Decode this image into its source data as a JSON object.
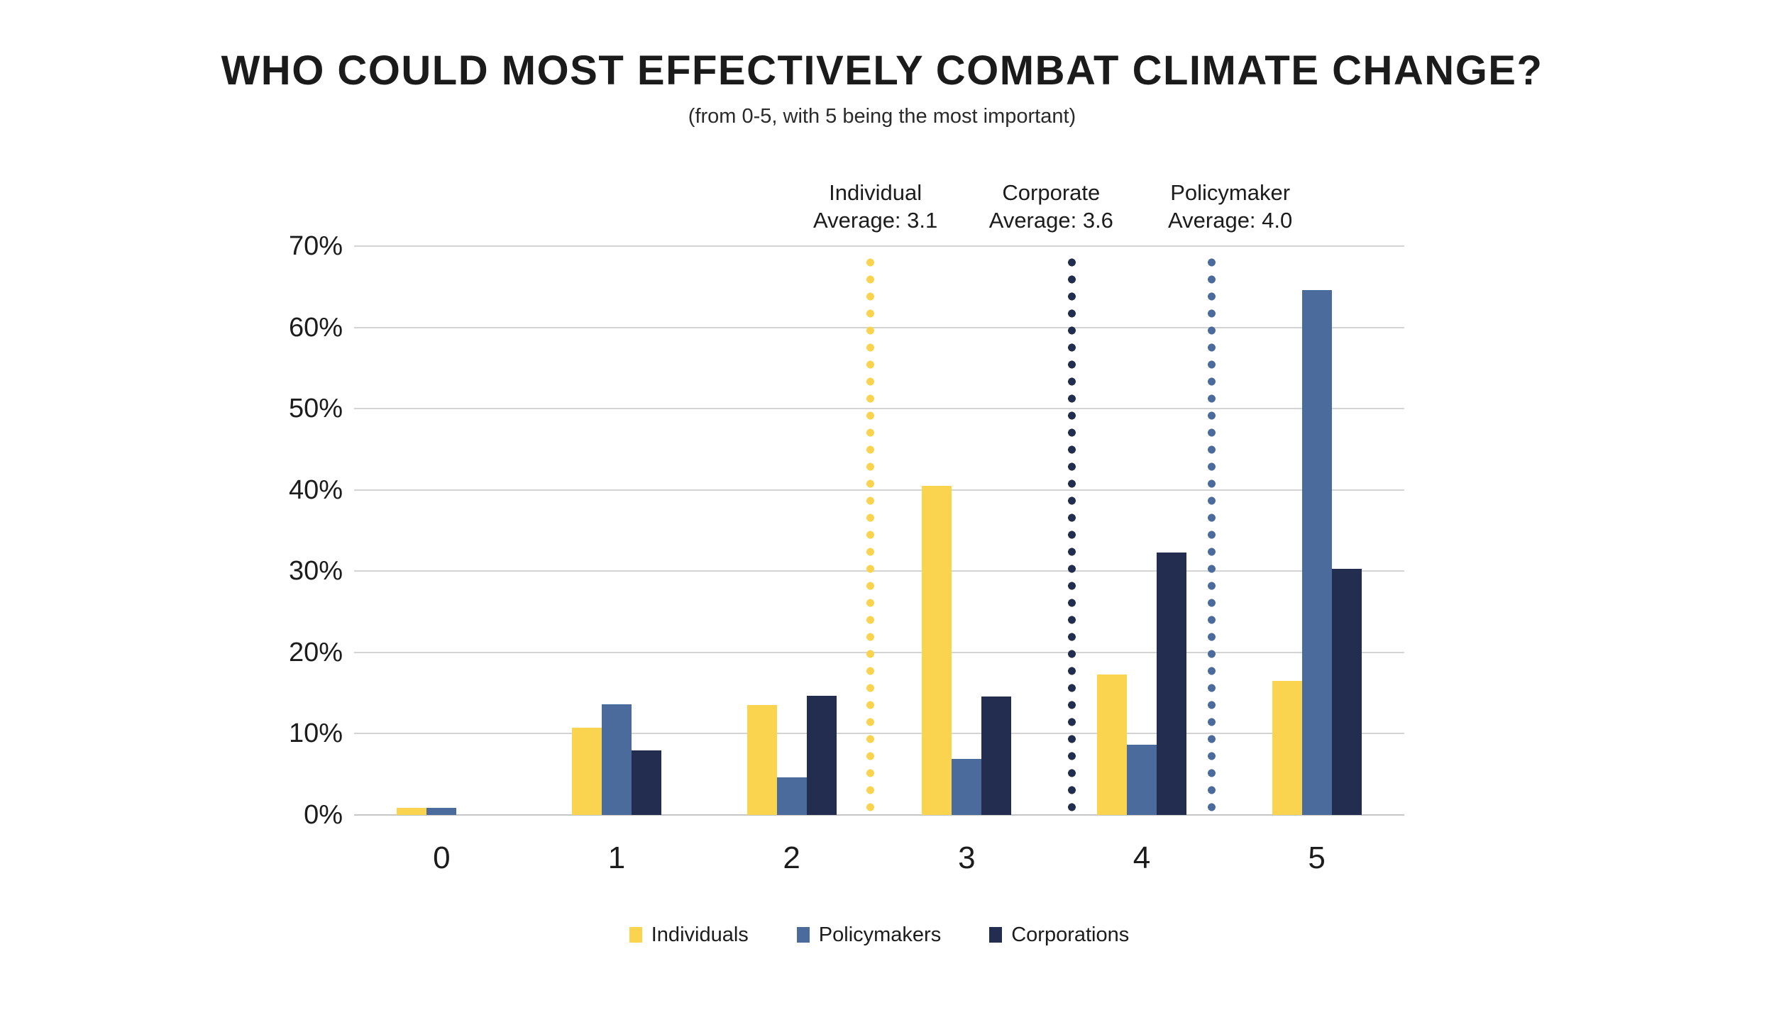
{
  "title": "WHO COULD MOST EFFECTIVELY COMBAT CLIMATE CHANGE?",
  "subtitle": "(from 0-5, with 5 being the most important)",
  "colors": {
    "background": "#FFFFFF",
    "individuals": "#FBD44F",
    "policymakers": "#4A6B9C",
    "corporations": "#222D4F",
    "gridline": "#D4D4D4",
    "axis_line": "#C6C6C6",
    "text": "#1C1C1C"
  },
  "chart_data": {
    "type": "bar",
    "title": "WHO COULD MOST EFFECTIVELY COMBAT CLIMATE CHANGE?",
    "subtitle": "(from 0-5, with 5 being the most important)",
    "categories": [
      "0",
      "1",
      "2",
      "3",
      "4",
      "5"
    ],
    "series": [
      {
        "name": "Individuals",
        "color": "#FBD44F",
        "values": [
          0.9,
          10.7,
          13.5,
          40.5,
          17.3,
          16.5
        ]
      },
      {
        "name": "Policymakers",
        "color": "#4A6B9C",
        "values": [
          0.9,
          13.6,
          4.6,
          6.9,
          8.6,
          64.6
        ]
      },
      {
        "name": "Corporations",
        "color": "#222D4F",
        "values": [
          0,
          7.9,
          14.7,
          14.6,
          32.3,
          30.3
        ]
      }
    ],
    "xlabel": "",
    "ylabel": "",
    "ylim": [
      0,
      70
    ],
    "ytick_labels": [
      "0%",
      "10%",
      "20%",
      "30%",
      "40%",
      "50%",
      "60%",
      "70%"
    ],
    "grid": true,
    "legend_position": "bottom",
    "reference_lines": [
      {
        "label": "Individual",
        "sublabel": "Average: 3.1",
        "value": 3.1,
        "axis_position": 2.45,
        "color": "#FBD44F"
      },
      {
        "label": "Corporate",
        "sublabel": "Average: 3.6",
        "value": 3.6,
        "axis_position": 3.6,
        "color": "#222D4F"
      },
      {
        "label": "Policymaker",
        "sublabel": "Average: 4.0",
        "value": 4.0,
        "axis_position": 4.4,
        "color": "#4A6B9C"
      }
    ]
  },
  "legend": {
    "items": [
      {
        "label": "Individuals",
        "color": "#FBD44F"
      },
      {
        "label": "Policymakers",
        "color": "#4A6B9C"
      },
      {
        "label": "Corporations",
        "color": "#222D4F"
      }
    ]
  }
}
